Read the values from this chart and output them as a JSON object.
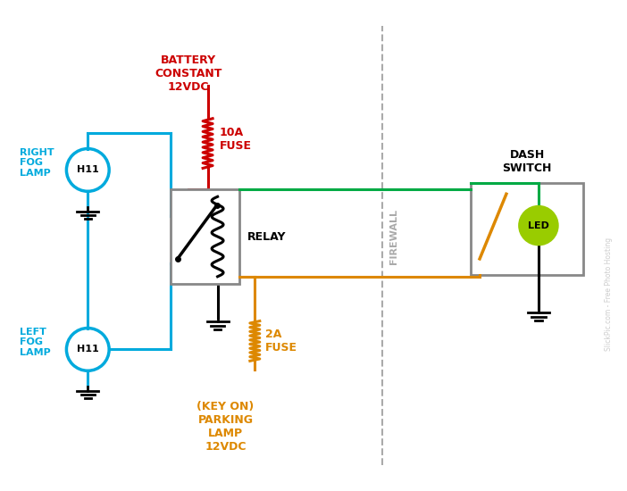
{
  "bg_color": "#ffffff",
  "colors": {
    "blue": "#00aadd",
    "red": "#cc0000",
    "green": "#00aa44",
    "orange": "#dd8800",
    "black": "#000000",
    "gray_box": "#888888",
    "led_green": "#99cc00",
    "text_gray": "#aaaaaa"
  },
  "labels": {
    "battery": "BATTERY\nCONSTANT\n12VDC",
    "fuse_10a": "10A\nFUSE",
    "relay": "RELAY",
    "right_fog": "RIGHT\nFOG\nLAMP",
    "left_fog": "LEFT\nFOG\nLAMP",
    "h11": "H11",
    "led": "LED",
    "dash_switch": "DASH\nSWITCH",
    "firewall": "FIREWALL",
    "parking": "(KEY ON)\nPARKING\nLAMP\n12VDC",
    "fuse_2a": "2A\nFUSE"
  },
  "watermark": "SlickPic.com - Free Photo Hosting"
}
